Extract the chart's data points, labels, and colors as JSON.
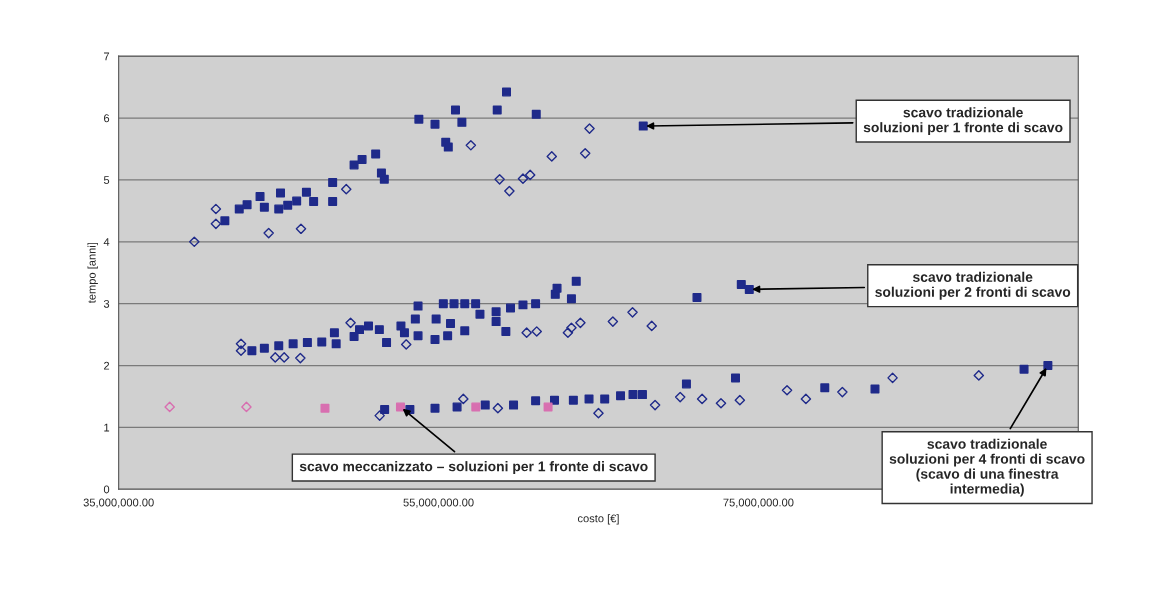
{
  "chart_data": {
    "type": "scatter",
    "xlabel": "costo [€]",
    "ylabel": "tempo [anni]",
    "xlim": [
      35000000,
      95000000
    ],
    "xticks": [
      {
        "value": 35000000,
        "label": "35,000,000.00"
      },
      {
        "value": 55000000,
        "label": "55,000,000.00"
      },
      {
        "value": 75000000,
        "label": "75,000,000.00"
      }
    ],
    "ylim": [
      0,
      7
    ],
    "yticks": [
      0,
      1,
      2,
      3,
      4,
      5,
      6,
      7
    ],
    "grid": "y",
    "series": [
      {
        "color": "#1f2a8a",
        "marker": "square",
        "x": [
          41640000,
          42540000,
          43030000,
          43840000,
          44110000,
          45120000,
          45010000,
          45570000,
          46130000,
          46740000,
          47190000,
          48380000,
          48380000,
          49720000,
          50220000,
          51070000,
          51430000,
          51610000,
          53770000,
          54780000,
          55450000,
          55610000,
          56060000,
          56460000,
          58670000,
          59250000,
          61110000,
          67800000,
          43330000,
          44110000,
          45010000,
          45910000,
          46800000,
          47700000,
          48490000,
          48600000,
          49720000,
          50060000,
          50620000,
          51300000,
          51750000,
          52650000,
          52870000,
          53550000,
          53720000,
          53720000,
          54780000,
          54850000,
          55300000,
          55570000,
          55750000,
          55970000,
          56640000,
          56640000,
          57320000,
          57590000,
          58600000,
          58600000,
          59210000,
          59500000,
          60280000,
          61070000,
          62300000,
          62410000,
          63310000,
          63610000,
          71160000,
          73930000,
          74430000,
          51630000,
          53210000,
          54780000,
          56160000,
          57920000,
          59690000,
          61070000,
          62250000,
          63430000,
          64410000,
          65390000,
          66380000,
          67160000,
          67750000,
          70500000,
          73570000,
          79150000,
          82290000,
          91610000,
          93100000
        ],
        "values": [
          4.34,
          4.53,
          4.6,
          4.73,
          4.56,
          4.79,
          4.53,
          4.59,
          4.66,
          4.8,
          4.65,
          4.96,
          4.65,
          5.24,
          5.33,
          5.42,
          5.11,
          5.01,
          5.98,
          5.9,
          5.61,
          5.53,
          6.13,
          5.93,
          6.13,
          6.42,
          6.06,
          5.87,
          2.24,
          2.28,
          2.32,
          2.35,
          2.37,
          2.38,
          2.53,
          2.35,
          2.47,
          2.58,
          2.64,
          2.58,
          2.37,
          2.64,
          2.53,
          2.75,
          2.96,
          2.48,
          2.42,
          2.75,
          3.0,
          2.48,
          2.68,
          3.0,
          3.0,
          2.56,
          3.0,
          2.83,
          2.87,
          2.71,
          2.55,
          2.93,
          2.98,
          3.0,
          3.15,
          3.25,
          3.08,
          3.36,
          3.1,
          3.31,
          3.23,
          1.29,
          1.29,
          1.31,
          1.33,
          1.36,
          1.36,
          1.43,
          1.44,
          1.44,
          1.46,
          1.46,
          1.51,
          1.53,
          1.53,
          1.7,
          1.8,
          1.64,
          1.62,
          1.94,
          2.0
        ]
      },
      {
        "color": "#1f2a8a",
        "marker": "diamond",
        "x": [
          39730000,
          41080000,
          41080000,
          44380000,
          46400000,
          49230000,
          57020000,
          58820000,
          59430000,
          60280000,
          60730000,
          62080000,
          64170000,
          64440000,
          42650000,
          42650000,
          44790000,
          45350000,
          46360000,
          49500000,
          52980000,
          60510000,
          61140000,
          63090000,
          63310000,
          63870000,
          65900000,
          67130000,
          68330000,
          51320000,
          56550000,
          58710000,
          65000000,
          68540000,
          70110000,
          71480000,
          72660000,
          73840000,
          76790000,
          77970000,
          80250000,
          83390000,
          88780000
        ],
        "values": [
          4.0,
          4.53,
          4.29,
          4.14,
          4.21,
          4.85,
          5.56,
          5.01,
          4.82,
          5.02,
          5.08,
          5.38,
          5.43,
          5.83,
          2.24,
          2.35,
          2.13,
          2.13,
          2.12,
          2.69,
          2.34,
          2.53,
          2.55,
          2.53,
          2.61,
          2.69,
          2.71,
          2.86,
          2.64,
          1.19,
          1.46,
          1.31,
          1.23,
          1.36,
          1.49,
          1.46,
          1.39,
          1.44,
          1.6,
          1.46,
          1.57,
          1.8,
          1.84
        ]
      },
      {
        "color": "#d86fb0",
        "marker": "square",
        "x": [
          47900000,
          52620000,
          57330000,
          61850000
        ],
        "values": [
          1.31,
          1.33,
          1.33,
          1.33
        ]
      },
      {
        "color": "#d86fb0",
        "marker": "diamond",
        "x": [
          38190000,
          42990000
        ],
        "values": [
          1.33,
          1.33
        ]
      }
    ],
    "annotations": [
      {
        "text": "scavo tradizionale\nsoluzioni per 1 fronte di scavo",
        "x": 67800000,
        "y": 5.87
      },
      {
        "text": "scavo tradizionale\nsoluzioni per 2 fronti di scavo",
        "x": 74430000,
        "y": 3.23
      },
      {
        "text": "scavo meccanizzato – soluzioni per 1 fronte di scavo",
        "x": 52620000,
        "y": 1.33
      },
      {
        "text": "scavo tradizionale\nsoluzioni per 4 fronti di scavo\n(scavo di una finestra\nintermedia)",
        "x": 93100000,
        "y": 2.0
      }
    ]
  }
}
